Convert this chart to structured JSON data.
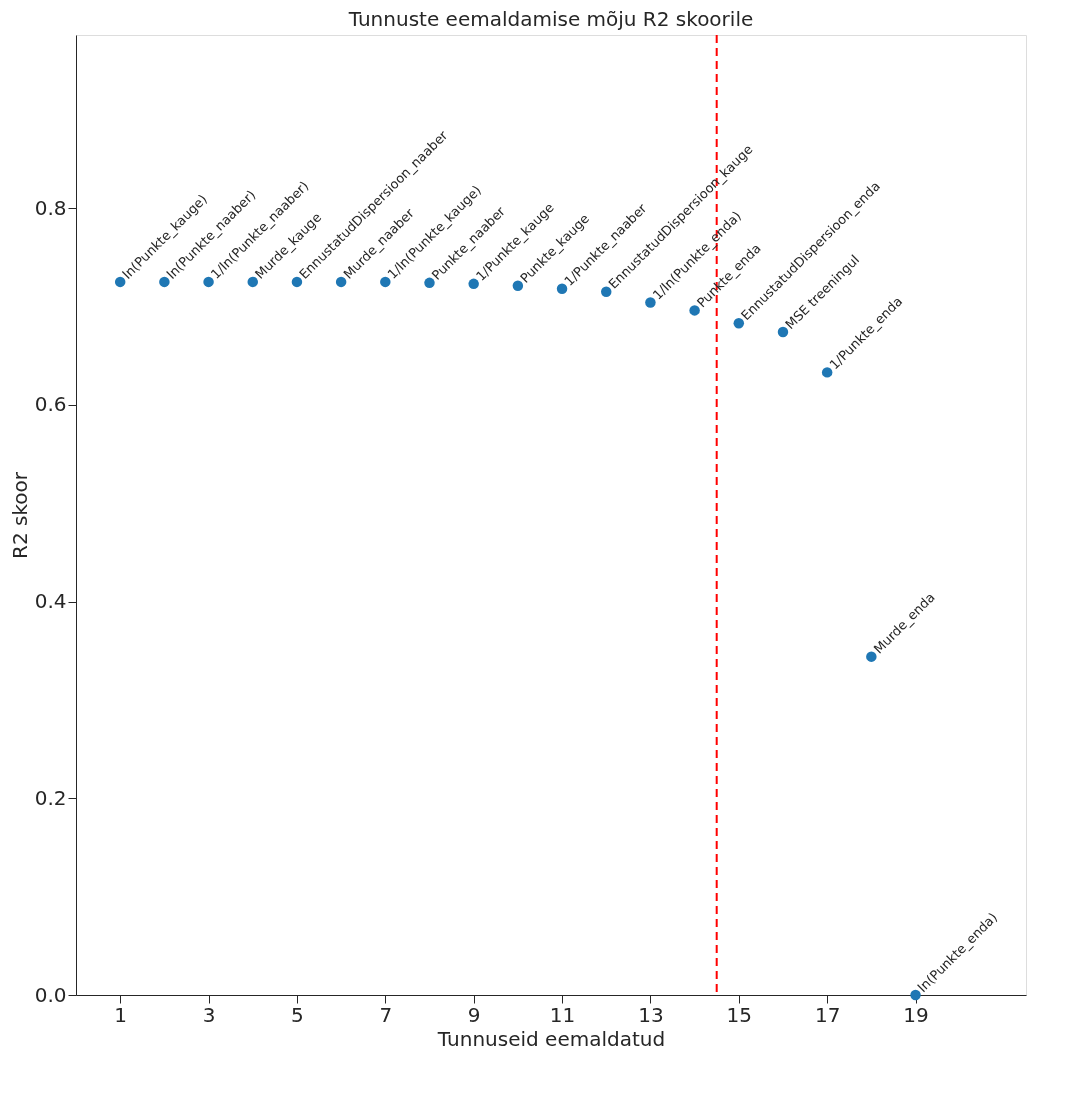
{
  "chart_data": {
    "type": "scatter",
    "title": "Tunnuste eemaldamise mõju R2 skoorile",
    "xlabel": "Tunnuseid eemaldatud",
    "ylabel": "R2 skoor",
    "x": [
      1,
      2,
      3,
      4,
      5,
      6,
      7,
      8,
      9,
      10,
      11,
      12,
      13,
      14,
      15,
      16,
      17,
      18,
      19
    ],
    "series": [
      {
        "color": "#1f77b4",
        "values": [
          0.725,
          0.725,
          0.725,
          0.725,
          0.725,
          0.725,
          0.725,
          0.724,
          0.723,
          0.721,
          0.718,
          0.715,
          0.704,
          0.696,
          0.683,
          0.674,
          0.633,
          0.344,
          0.0
        ]
      }
    ],
    "xlim": [
      0,
      21.5
    ],
    "ylim": [
      0,
      0.976
    ],
    "xticks": [
      1,
      3,
      5,
      7,
      9,
      11,
      13,
      15,
      17,
      19
    ],
    "yticks": [
      {
        "value": 0,
        "label": "0.0"
      },
      0.2,
      0.4,
      0.6,
      0.8
    ],
    "ref_lines": [
      {
        "axis": "x",
        "value": 14.5,
        "color": "#ff0000",
        "line_style": "dashed"
      }
    ],
    "annotations": [
      {
        "text": "ln(Punkte_kauge)",
        "x": 1,
        "y": 0.725
      },
      {
        "text": "ln(Punkte_naaber)",
        "x": 2,
        "y": 0.725
      },
      {
        "text": "1/ln(Punkte_naaber)",
        "x": 3,
        "y": 0.725
      },
      {
        "text": "Murde_kauge",
        "x": 4,
        "y": 0.725
      },
      {
        "text": "EnnustatudDispersioon_naaber",
        "x": 5,
        "y": 0.725
      },
      {
        "text": "Murde_naaber",
        "x": 6,
        "y": 0.725
      },
      {
        "text": "1/ln(Punkte_kauge)",
        "x": 7,
        "y": 0.725
      },
      {
        "text": "Punkte_naaber",
        "x": 8,
        "y": 0.724
      },
      {
        "text": "1/Punkte_kauge",
        "x": 9,
        "y": 0.723
      },
      {
        "text": "Punkte_kauge",
        "x": 10,
        "y": 0.721
      },
      {
        "text": "1/Punkte_naaber",
        "x": 11,
        "y": 0.718
      },
      {
        "text": "EnnustatudDispersioon_kauge",
        "x": 12,
        "y": 0.715
      },
      {
        "text": "1/ln(Punkte_enda)",
        "x": 13,
        "y": 0.704
      },
      {
        "text": "Punkte_enda",
        "x": 14,
        "y": 0.696
      },
      {
        "text": "EnnustatudDispersioon_enda",
        "x": 15,
        "y": 0.683
      },
      {
        "text": "MSE treeningul",
        "x": 16,
        "y": 0.674
      },
      {
        "text": "1/Punkte_enda",
        "x": 17,
        "y": 0.633
      },
      {
        "text": "Murde_enda",
        "x": 18,
        "y": 0.344
      },
      {
        "text": "ln(Punkte_enda)",
        "x": 19,
        "y": 0.0
      }
    ],
    "grid": false
  }
}
